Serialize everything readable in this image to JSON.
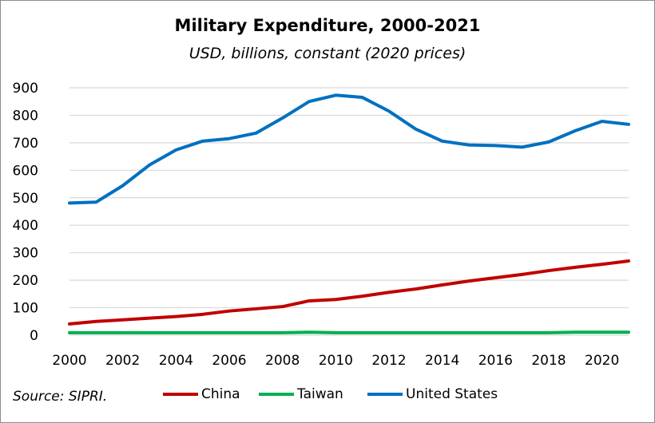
{
  "chart_data": {
    "type": "line",
    "title": "Military Expenditure, 2000-2021",
    "subtitle": "USD, billions, constant (2020 prices)",
    "xlabel": "",
    "ylabel": "",
    "x": [
      2000,
      2001,
      2002,
      2003,
      2004,
      2005,
      2006,
      2007,
      2008,
      2009,
      2010,
      2011,
      2012,
      2013,
      2014,
      2015,
      2016,
      2017,
      2018,
      2019,
      2020,
      2021
    ],
    "xticks": [
      "2000",
      "2002",
      "2004",
      "2006",
      "2008",
      "2010",
      "2012",
      "2014",
      "2016",
      "2018",
      "2020"
    ],
    "xlim": [
      2000,
      2021
    ],
    "ylim": [
      0,
      900
    ],
    "yticks": [
      "0",
      "100",
      "200",
      "300",
      "400",
      "500",
      "600",
      "700",
      "800",
      "900"
    ],
    "grid": true,
    "legend_position": "bottom",
    "series": [
      {
        "name": "China",
        "color": "#c00000",
        "values": [
          41,
          50,
          56,
          62,
          68,
          76,
          88,
          96,
          104,
          125,
          130,
          142,
          156,
          168,
          183,
          197,
          209,
          221,
          235,
          247,
          258,
          270
        ]
      },
      {
        "name": "Taiwan",
        "color": "#00b050",
        "values": [
          9,
          9,
          9,
          9,
          9,
          9,
          9,
          9,
          9,
          11,
          9,
          9,
          9,
          9,
          9,
          9,
          9,
          9,
          9,
          11,
          11,
          11
        ]
      },
      {
        "name": "United States",
        "color": "#0070c0",
        "values": [
          481,
          484,
          544,
          619,
          674,
          706,
          715,
          735,
          790,
          850,
          873,
          865,
          815,
          750,
          706,
          692,
          690,
          684,
          703,
          744,
          778,
          767
        ]
      }
    ]
  },
  "source": "Source: SIPRI."
}
